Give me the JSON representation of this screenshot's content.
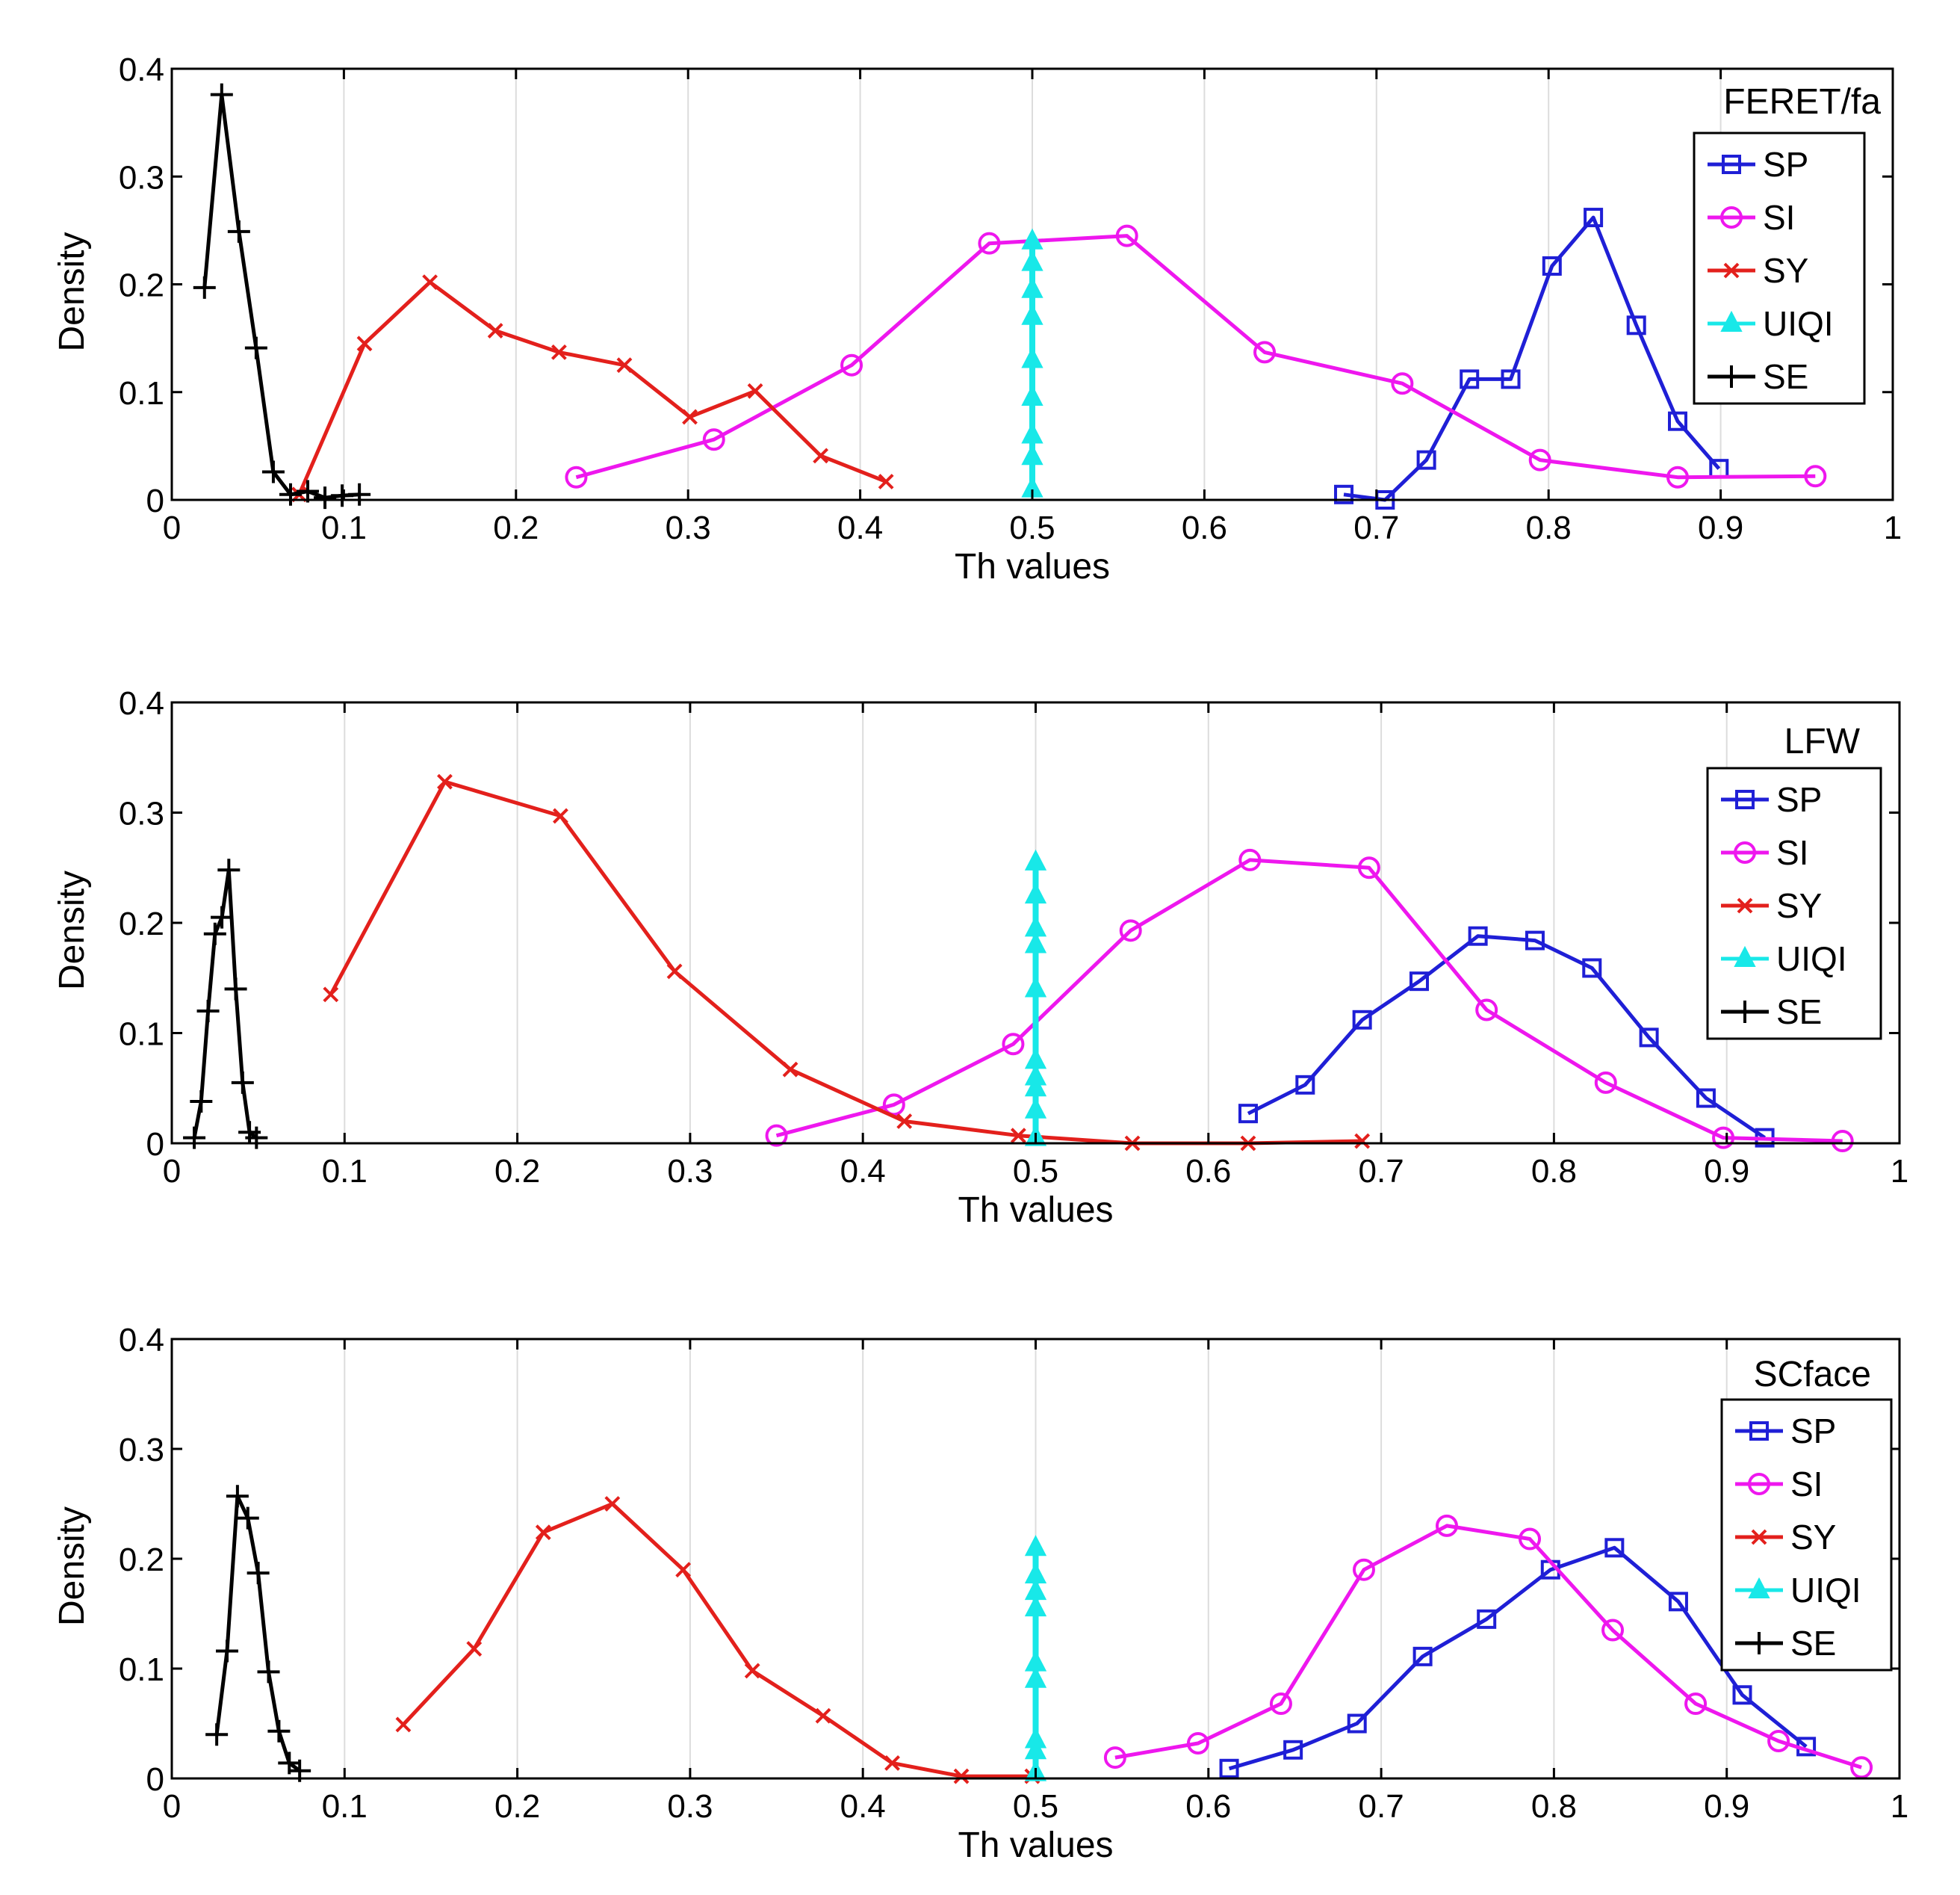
{
  "colors": {
    "SP": "#1f1fd6",
    "SI": "#ee17ee",
    "SY": "#e3201c",
    "UIQI": "#18e8e8",
    "SE": "#000000"
  },
  "markers": {
    "SP": "square",
    "SI": "circle",
    "SY": "x",
    "UIQI": "triangle",
    "SE": "plus"
  },
  "chart_data": [
    {
      "type": "line",
      "title": "FERET/fa",
      "xlabel": "Th values",
      "ylabel": "Density",
      "xlim": [
        0,
        1
      ],
      "ylim": [
        0,
        0.4
      ],
      "xticks": [
        "0",
        "0.1",
        "0.2",
        "0.3",
        "0.4",
        "0.5",
        "0.6",
        "0.7",
        "0.8",
        "0.9",
        "1"
      ],
      "yticks": [
        "0",
        "0.1",
        "0.2",
        "0.3",
        "0.4"
      ],
      "grid": "vertical",
      "legend": "top-right",
      "series": [
        {
          "name": "SP",
          "x": [
            0.681,
            0.705,
            0.729,
            0.754,
            0.778,
            0.802,
            0.826,
            0.851,
            0.875,
            0.899
          ],
          "y": [
            0.005,
            0.0,
            0.037,
            0.112,
            0.112,
            0.217,
            0.262,
            0.162,
            0.073,
            0.029
          ]
        },
        {
          "name": "SI",
          "x": [
            0.235,
            0.315,
            0.395,
            0.475,
            0.555,
            0.635,
            0.715,
            0.795,
            0.875,
            0.955
          ],
          "y": [
            0.021,
            0.056,
            0.125,
            0.238,
            0.245,
            0.137,
            0.108,
            0.037,
            0.021,
            0.022
          ]
        },
        {
          "name": "SY",
          "x": [
            0.074,
            0.112,
            0.15,
            0.188,
            0.225,
            0.263,
            0.301,
            0.339,
            0.377,
            0.415
          ],
          "y": [
            0.005,
            0.145,
            0.202,
            0.157,
            0.137,
            0.125,
            0.077,
            0.101,
            0.041,
            0.017
          ]
        },
        {
          "name": "UIQI",
          "x": [
            0.5,
            0.5,
            0.5,
            0.5,
            0.5,
            0.5,
            0.5,
            0.5,
            0.5
          ],
          "y": [
            0.01,
            0.04,
            0.06,
            0.095,
            0.13,
            0.17,
            0.195,
            0.22,
            0.24
          ]
        },
        {
          "name": "SE",
          "x": [
            0.019,
            0.029,
            0.039,
            0.049,
            0.059,
            0.069,
            0.079,
            0.089,
            0.099,
            0.109
          ],
          "y": [
            0.197,
            0.376,
            0.249,
            0.141,
            0.026,
            0.005,
            0.008,
            0.002,
            0.004,
            0.005
          ]
        }
      ]
    },
    {
      "type": "line",
      "title": "LFW",
      "xlabel": "Th values",
      "ylabel": "Density",
      "xlim": [
        0,
        1
      ],
      "ylim": [
        0,
        0.4
      ],
      "xticks": [
        "0",
        "0.1",
        "0.2",
        "0.3",
        "0.4",
        "0.5",
        "0.6",
        "0.7",
        "0.8",
        "0.9",
        "1"
      ],
      "yticks": [
        "0",
        "0.1",
        "0.2",
        "0.3",
        "0.4"
      ],
      "grid": "vertical",
      "legend": "top-right",
      "series": [
        {
          "name": "SP",
          "x": [
            0.623,
            0.656,
            0.689,
            0.722,
            0.756,
            0.789,
            0.822,
            0.855,
            0.888,
            0.922
          ],
          "y": [
            0.027,
            0.053,
            0.112,
            0.147,
            0.188,
            0.184,
            0.159,
            0.096,
            0.041,
            0.005
          ]
        },
        {
          "name": "SI",
          "x": [
            0.35,
            0.418,
            0.487,
            0.555,
            0.624,
            0.693,
            0.761,
            0.83,
            0.898,
            0.967
          ],
          "y": [
            0.007,
            0.035,
            0.09,
            0.193,
            0.257,
            0.25,
            0.121,
            0.055,
            0.005,
            0.002
          ]
        },
        {
          "name": "SY",
          "x": [
            0.092,
            0.158,
            0.225,
            0.291,
            0.358,
            0.424,
            0.49,
            0.556,
            0.623,
            0.689
          ],
          "y": [
            0.135,
            0.328,
            0.297,
            0.156,
            0.067,
            0.02,
            0.007,
            0.0,
            0.0,
            0.002
          ]
        },
        {
          "name": "UIQI",
          "x": [
            0.5,
            0.5,
            0.5,
            0.5,
            0.5,
            0.5,
            0.5,
            0.5,
            0.5,
            0.5
          ],
          "y": [
            0.005,
            0.03,
            0.05,
            0.06,
            0.075,
            0.14,
            0.18,
            0.195,
            0.225,
            0.255
          ]
        },
        {
          "name": "SE",
          "x": [
            0.013,
            0.017,
            0.021,
            0.025,
            0.029,
            0.033,
            0.037,
            0.041,
            0.045,
            0.049
          ],
          "y": [
            0.005,
            0.038,
            0.12,
            0.19,
            0.205,
            0.248,
            0.14,
            0.055,
            0.01,
            0.005
          ]
        }
      ]
    },
    {
      "type": "line",
      "title": "SCface",
      "xlabel": "Th values",
      "ylabel": "Density",
      "xlim": [
        0,
        1
      ],
      "ylim": [
        0,
        0.4
      ],
      "xticks": [
        "0",
        "0.1",
        "0.2",
        "0.3",
        "0.4",
        "0.5",
        "0.6",
        "0.7",
        "0.8",
        "0.9",
        "1"
      ],
      "yticks": [
        "0",
        "0.1",
        "0.2",
        "0.3",
        "0.4"
      ],
      "grid": "vertical",
      "legend": "top-right",
      "series": [
        {
          "name": "SP",
          "x": [
            0.612,
            0.649,
            0.686,
            0.724,
            0.761,
            0.798,
            0.835,
            0.872,
            0.909,
            0.946
          ],
          "y": [
            0.009,
            0.026,
            0.05,
            0.111,
            0.145,
            0.19,
            0.21,
            0.161,
            0.076,
            0.029
          ]
        },
        {
          "name": "SI",
          "x": [
            0.546,
            0.594,
            0.642,
            0.69,
            0.738,
            0.786,
            0.834,
            0.882,
            0.93,
            0.978
          ],
          "y": [
            0.019,
            0.032,
            0.068,
            0.19,
            0.23,
            0.218,
            0.135,
            0.068,
            0.034,
            0.01
          ]
        },
        {
          "name": "SY",
          "x": [
            0.134,
            0.175,
            0.215,
            0.255,
            0.296,
            0.336,
            0.377,
            0.417,
            0.457,
            0.498
          ],
          "y": [
            0.049,
            0.118,
            0.224,
            0.25,
            0.19,
            0.098,
            0.057,
            0.014,
            0.002,
            0.002
          ]
        },
        {
          "name": "UIQI",
          "x": [
            0.5,
            0.5,
            0.5,
            0.5,
            0.5,
            0.5,
            0.5,
            0.5,
            0.5
          ],
          "y": [
            0.005,
            0.025,
            0.035,
            0.09,
            0.105,
            0.155,
            0.17,
            0.185,
            0.21
          ]
        },
        {
          "name": "SE",
          "x": [
            0.026,
            0.032,
            0.038,
            0.044,
            0.05,
            0.056,
            0.062,
            0.068,
            0.074
          ],
          "y": [
            0.04,
            0.116,
            0.257,
            0.237,
            0.187,
            0.097,
            0.043,
            0.014,
            0.007
          ]
        }
      ]
    }
  ]
}
